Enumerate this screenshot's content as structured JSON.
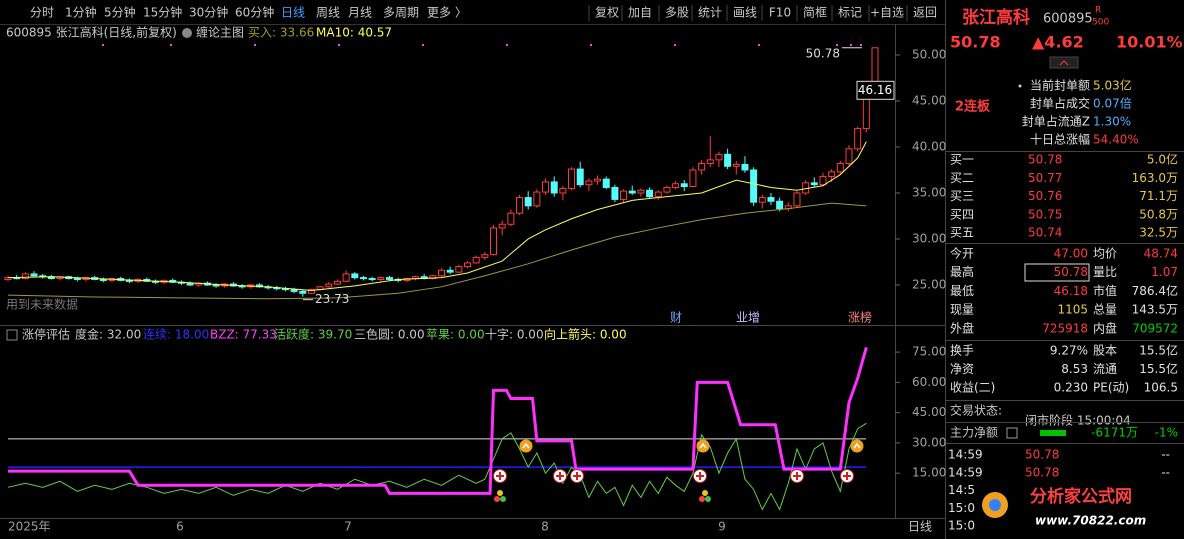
{
  "toolbar": {
    "periods": [
      "分时",
      "1分钟",
      "5分钟",
      "15分钟",
      "30分钟",
      "60分钟",
      "日线",
      "周线",
      "月线",
      "多周期",
      "更多 〉"
    ],
    "tools": [
      "复权",
      "加自",
      "多股",
      "统计",
      "画线",
      "F10",
      "简框",
      "标记",
      "+自选",
      "返回"
    ]
  },
  "main_chart": {
    "header": {
      "title": "600895 张江高科(日线,前复权)",
      "indicator": "缠论主图",
      "buy": {
        "value": 33.66,
        "label": "买入: 33.66"
      },
      "ma10": {
        "value": 40.57,
        "label": "MA10: 40.57"
      }
    },
    "ylim": [
      20.65,
      51.41
    ],
    "yticks": [
      {
        "value": 25,
        "label": "25.00"
      },
      {
        "value": 30,
        "label": "30.00"
      },
      {
        "value": 35,
        "label": "35.00"
      },
      {
        "value": 40,
        "label": "40.00"
      },
      {
        "value": 45,
        "label": "45.00"
      },
      {
        "value": 50,
        "label": "50.00"
      }
    ],
    "candles": [
      [
        25.6,
        26.0,
        25.4,
        25.8
      ],
      [
        25.8,
        26.1,
        25.6,
        25.7
      ],
      [
        25.7,
        26.4,
        25.6,
        26.2
      ],
      [
        26.2,
        26.5,
        25.9,
        26.0
      ],
      [
        26.0,
        26.2,
        25.7,
        25.9
      ],
      [
        25.9,
        26.1,
        25.6,
        25.7
      ],
      [
        25.7,
        26.0,
        25.5,
        25.9
      ],
      [
        25.9,
        26.0,
        25.6,
        25.7
      ],
      [
        25.7,
        25.9,
        25.4,
        25.6
      ],
      [
        25.6,
        25.9,
        25.4,
        25.8
      ],
      [
        25.8,
        26.0,
        25.5,
        25.6
      ],
      [
        25.6,
        25.8,
        25.3,
        25.5
      ],
      [
        25.5,
        25.8,
        25.3,
        25.7
      ],
      [
        25.7,
        25.9,
        25.4,
        25.5
      ],
      [
        25.5,
        25.7,
        25.2,
        25.4
      ],
      [
        25.4,
        25.7,
        25.2,
        25.6
      ],
      [
        25.6,
        25.8,
        25.3,
        25.4
      ],
      [
        25.4,
        25.6,
        25.1,
        25.3
      ],
      [
        25.3,
        25.6,
        25.1,
        25.5
      ],
      [
        25.5,
        25.7,
        25.2,
        25.3
      ],
      [
        25.3,
        25.5,
        25.0,
        25.2
      ],
      [
        25.2,
        25.4,
        24.9,
        25.0
      ],
      [
        25.0,
        25.3,
        24.8,
        25.2
      ],
      [
        25.2,
        25.4,
        24.9,
        25.0
      ],
      [
        25.0,
        25.2,
        24.7,
        24.9
      ],
      [
        24.9,
        25.2,
        24.7,
        25.1
      ],
      [
        25.1,
        25.3,
        24.8,
        24.9
      ],
      [
        24.9,
        25.1,
        24.6,
        24.8
      ],
      [
        24.8,
        25.1,
        24.6,
        25.0
      ],
      [
        25.0,
        25.2,
        24.7,
        24.8
      ],
      [
        24.8,
        25.0,
        24.5,
        24.7
      ],
      [
        24.7,
        24.9,
        24.4,
        24.6
      ],
      [
        24.6,
        24.8,
        24.3,
        24.5
      ],
      [
        24.5,
        24.7,
        24.1,
        24.3
      ],
      [
        24.3,
        24.5,
        23.73,
        24.1
      ],
      [
        24.1,
        24.6,
        24.0,
        24.5
      ],
      [
        24.5,
        24.9,
        24.4,
        24.8
      ],
      [
        24.8,
        25.3,
        24.7,
        25.1
      ],
      [
        25.1,
        25.6,
        25.0,
        25.4
      ],
      [
        25.4,
        26.6,
        25.3,
        26.2
      ],
      [
        26.2,
        26.4,
        25.6,
        25.8
      ],
      [
        25.8,
        26.0,
        25.5,
        25.7
      ],
      [
        25.7,
        25.9,
        25.4,
        25.6
      ],
      [
        25.6,
        25.9,
        25.4,
        25.8
      ],
      [
        25.8,
        26.0,
        25.5,
        25.6
      ],
      [
        25.6,
        25.8,
        25.3,
        25.5
      ],
      [
        25.5,
        25.8,
        25.3,
        25.7
      ],
      [
        25.7,
        26.0,
        25.5,
        25.9
      ],
      [
        25.9,
        26.2,
        25.6,
        25.7
      ],
      [
        25.7,
        26.1,
        25.6,
        26.0
      ],
      [
        26.0,
        26.8,
        25.9,
        26.6
      ],
      [
        26.6,
        27.0,
        26.2,
        26.4
      ],
      [
        26.4,
        27.2,
        26.3,
        27.0
      ],
      [
        27.0,
        27.6,
        26.8,
        27.4
      ],
      [
        27.4,
        28.2,
        27.3,
        28.0
      ],
      [
        28.0,
        28.6,
        27.7,
        28.3
      ],
      [
        28.3,
        31.5,
        28.2,
        31.2
      ],
      [
        31.2,
        32.0,
        30.4,
        31.6
      ],
      [
        31.6,
        33.2,
        31.4,
        32.8
      ],
      [
        32.8,
        34.8,
        32.6,
        34.5
      ],
      [
        34.5,
        35.2,
        33.2,
        33.6
      ],
      [
        33.6,
        35.4,
        33.4,
        35.1
      ],
      [
        35.1,
        36.6,
        34.8,
        36.2
      ],
      [
        36.2,
        36.8,
        34.6,
        35.0
      ],
      [
        35.0,
        35.8,
        34.2,
        35.5
      ],
      [
        35.5,
        37.8,
        35.3,
        37.6
      ],
      [
        37.6,
        38.4,
        35.6,
        35.9
      ],
      [
        35.9,
        36.6,
        35.2,
        36.3
      ],
      [
        36.3,
        36.9,
        35.9,
        36.5
      ],
      [
        36.5,
        36.8,
        35.4,
        35.6
      ],
      [
        35.6,
        35.9,
        34.0,
        34.3
      ],
      [
        34.3,
        35.4,
        34.0,
        35.2
      ],
      [
        35.2,
        35.8,
        34.8,
        35.0
      ],
      [
        35.0,
        35.5,
        34.6,
        35.3
      ],
      [
        35.3,
        35.6,
        34.4,
        34.6
      ],
      [
        34.6,
        35.3,
        34.2,
        35.1
      ],
      [
        35.1,
        35.8,
        34.9,
        35.6
      ],
      [
        35.6,
        36.3,
        35.4,
        36.0
      ],
      [
        36.0,
        36.4,
        35.2,
        35.7
      ],
      [
        35.7,
        37.8,
        35.6,
        37.5
      ],
      [
        37.5,
        38.6,
        37.0,
        38.2
      ],
      [
        38.2,
        41.2,
        37.8,
        38.6
      ],
      [
        38.6,
        39.5,
        37.8,
        39.2
      ],
      [
        39.2,
        39.8,
        37.6,
        37.9
      ],
      [
        37.9,
        38.5,
        37.0,
        38.1
      ],
      [
        38.1,
        39.0,
        37.2,
        37.5
      ],
      [
        37.5,
        37.8,
        33.6,
        34.0
      ],
      [
        34.0,
        34.8,
        33.3,
        34.5
      ],
      [
        34.5,
        35.0,
        33.7,
        34.1
      ],
      [
        34.1,
        34.5,
        33.0,
        33.3
      ],
      [
        33.3,
        34.0,
        33.0,
        33.6
      ],
      [
        33.6,
        35.2,
        33.4,
        35.0
      ],
      [
        35.0,
        36.4,
        34.8,
        36.1
      ],
      [
        36.1,
        36.7,
        35.6,
        35.9
      ],
      [
        35.9,
        37.2,
        35.7,
        36.8
      ],
      [
        36.8,
        37.6,
        36.2,
        37.3
      ],
      [
        37.3,
        38.5,
        37.0,
        38.2
      ],
      [
        38.2,
        40.2,
        38.0,
        39.8
      ],
      [
        39.8,
        42.2,
        39.5,
        42.0
      ],
      [
        42.0,
        46.2,
        41.6,
        46.16
      ],
      [
        47.0,
        50.78,
        46.18,
        50.78
      ]
    ],
    "ma10": {
      "color": "#ffff55",
      "x": [
        0,
        5,
        10,
        15,
        20,
        25,
        30,
        35,
        40,
        45,
        50,
        53,
        57,
        60,
        62,
        65,
        68,
        72,
        76,
        80,
        84,
        88,
        91,
        94,
        96,
        98,
        99
      ],
      "values": [
        25.8,
        25.9,
        25.7,
        25.5,
        25.3,
        25.0,
        24.8,
        24.4,
        24.9,
        25.6,
        25.8,
        26.3,
        27.6,
        30.0,
        31.0,
        32.2,
        33.2,
        34.2,
        34.6,
        35.0,
        36.4,
        35.6,
        35.3,
        35.8,
        37.0,
        38.8,
        40.57
      ]
    },
    "ma_long": {
      "color": "#9a9a3c",
      "x": [
        0,
        10,
        20,
        30,
        38,
        45,
        50,
        55,
        60,
        65,
        70,
        75,
        80,
        85,
        90,
        95,
        99
      ],
      "values": [
        23.9,
        23.7,
        23.6,
        23.5,
        23.6,
        24.1,
        24.8,
        26.0,
        27.3,
        28.8,
        30.2,
        31.2,
        32.1,
        32.8,
        33.3,
        33.9,
        33.6
      ]
    },
    "low_marker": {
      "value": 23.73,
      "label": "23.73"
    },
    "high_marker": {
      "value": 50.78,
      "label": "50.78"
    },
    "prev_close": {
      "value": 46.16,
      "label": "46.16"
    },
    "note": "用到未来数据",
    "events": [
      "财",
      "业增",
      "涨榜"
    ]
  },
  "indicator": {
    "header": {
      "name": "涨停评估",
      "items": [
        {
          "value": 32,
          "label": "度金: 32.00"
        },
        {
          "value": 18,
          "label": "连续: 18.00"
        },
        {
          "value": 77.33,
          "label": "BZZ: 77.33"
        },
        {
          "value": 39.7,
          "label": "活跃度: 39.70"
        },
        {
          "value": 0,
          "label": "三色圆: 0.00"
        },
        {
          "value": 0,
          "label": "苹果: 0.00"
        },
        {
          "value": 0,
          "label": "十字: 0.00"
        },
        {
          "value": 0,
          "label": "向上箭头: 0.00"
        }
      ]
    },
    "ylim": [
      -7.2,
      79.5
    ],
    "yticks": [
      {
        "value": 15,
        "label": "15.00"
      },
      {
        "value": 30,
        "label": "30.00"
      },
      {
        "value": 45,
        "label": "45.00"
      },
      {
        "value": 60,
        "label": "60.00"
      },
      {
        "value": 75,
        "label": "75.00"
      }
    ],
    "bzz": {
      "color": "#ff30ff",
      "x": [
        0,
        14,
        15,
        43.5,
        44,
        55.6,
        56,
        57.5,
        58,
        60.5,
        61,
        65,
        65.5,
        79,
        79.5,
        83,
        84.5,
        88.5,
        89.5,
        96,
        97,
        98,
        99
      ],
      "values": [
        16,
        16,
        9,
        9,
        5,
        5,
        56,
        56,
        52,
        52,
        31,
        31,
        17,
        17,
        60,
        60,
        39,
        39,
        17,
        17,
        50,
        62,
        77.33
      ]
    },
    "activity": {
      "color": "#60d040",
      "x": [
        0,
        2,
        4,
        6,
        8,
        10,
        12,
        14,
        16,
        18,
        20,
        22,
        24,
        26,
        28,
        30,
        32,
        34,
        36,
        38,
        40,
        42,
        44,
        46,
        48,
        50,
        52,
        54,
        55,
        56,
        57,
        58,
        59,
        60,
        61,
        62,
        63,
        64,
        65,
        66,
        67,
        68,
        69,
        70,
        71,
        72,
        73,
        74,
        75,
        76,
        77,
        78,
        79,
        80,
        81,
        82,
        83,
        84,
        85,
        86,
        87,
        88,
        89,
        90,
        91,
        92,
        93,
        94,
        95,
        96,
        97,
        98,
        99
      ],
      "values": [
        8,
        10,
        8,
        11,
        6,
        9,
        7,
        10,
        8,
        5,
        7,
        5,
        8,
        4,
        7,
        5,
        9,
        6,
        10,
        7,
        12,
        9,
        11,
        8,
        12,
        9,
        14,
        10,
        12,
        22,
        32,
        35,
        27,
        18,
        25,
        15,
        20,
        10,
        18,
        14,
        3,
        11,
        5,
        8,
        -1,
        9,
        3,
        11,
        5,
        13,
        9,
        6,
        15,
        34,
        28,
        15,
        25,
        32,
        12,
        7,
        -3,
        5,
        -3,
        10,
        27,
        17,
        27,
        30,
        16,
        6,
        27,
        37,
        39.7
      ]
    }
  },
  "time_axis": {
    "labels": [
      "2025年",
      "6",
      "7",
      "8",
      "9"
    ],
    "period": "日线"
  },
  "quote_panel": {
    "name": "张江高科",
    "code": "600895",
    "badge_top": "R",
    "badge_bottom": "500",
    "price": "50.78",
    "change": "▲4.62",
    "change_pct": "10.01%",
    "streak": "2连板",
    "seal": [
      {
        "label": "当前封单额",
        "value": "5.03亿"
      },
      {
        "label": "封单占成交",
        "value": "0.07倍"
      },
      {
        "label": "封单占流通Z",
        "value": "1.30%"
      },
      {
        "label": "十日总涨幅",
        "value": "54.40%"
      }
    ],
    "bids": [
      [
        "买一",
        "50.78",
        "5.0亿"
      ],
      [
        "买二",
        "50.77",
        "163.0万"
      ],
      [
        "买三",
        "50.76",
        "71.1万"
      ],
      [
        "买四",
        "50.75",
        "50.8万"
      ],
      [
        "买五",
        "50.74",
        "32.5万"
      ]
    ],
    "stats": [
      [
        "今开",
        "47.00",
        "均价",
        "48.74"
      ],
      [
        "最高",
        "50.78",
        "量比",
        "1.07"
      ],
      [
        "最低",
        "46.18",
        "市值",
        "786.4亿"
      ],
      [
        "现量",
        "1105",
        "总量",
        "143.5万"
      ],
      [
        "外盘",
        "725918",
        "内盘",
        "709572"
      ]
    ],
    "finance": [
      [
        "换手",
        "9.27%",
        "股本",
        "15.5亿"
      ],
      [
        "净资",
        "8.53",
        "流通",
        "15.5亿"
      ],
      [
        "收益(二)",
        "0.230",
        "PE(动)",
        "106.5"
      ]
    ],
    "status_label": "交易状态:",
    "status": "闭市阶段 15:00:04",
    "flow_label": "主力净额",
    "flow_value": "-6171万",
    "flow_pct": "-1%",
    "ticks": [
      [
        "14:59",
        "50.78",
        "--"
      ],
      [
        "14:59",
        "50.78",
        "--"
      ],
      [
        "14:5"
      ],
      [
        "15:0"
      ],
      [
        "15:0"
      ]
    ]
  },
  "watermark": {
    "title": "分析家公式网",
    "url": "www.70822.com"
  }
}
